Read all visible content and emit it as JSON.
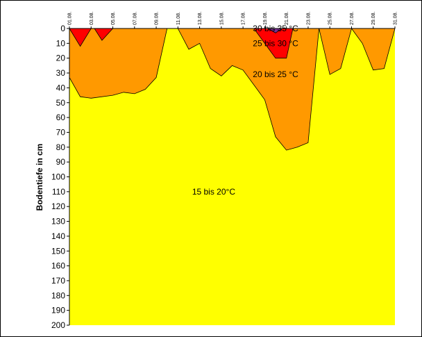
{
  "chart_data": {
    "type": "area",
    "title": "",
    "ylabel": "Bodentiefe in cm",
    "xlabel": "",
    "ylim": [
      0,
      200
    ],
    "y_inverted": true,
    "y_ticks": [
      0,
      10,
      20,
      30,
      40,
      50,
      60,
      70,
      80,
      90,
      100,
      110,
      120,
      130,
      140,
      150,
      160,
      170,
      180,
      190,
      200
    ],
    "x_ticks": [
      "01.08.",
      "03.08.",
      "05.08.",
      "07.08.",
      "09.08.",
      "11.08.",
      "13.08.",
      "15.08.",
      "17.08.",
      "19.08.",
      "21.08.",
      "23.08.",
      "25.08.",
      "27.08.",
      "29.08.",
      "31.08."
    ],
    "x_day_range": [
      1,
      31
    ],
    "grid": false,
    "legend": "none",
    "regions": [
      {
        "name": "15 bis 20°C",
        "color": "#ffff00",
        "label_day": 14.3,
        "label_depth": 110,
        "points": []
      },
      {
        "name": "20 bis 25 °C",
        "color": "#ff9900",
        "label_day": 20,
        "label_depth": 31,
        "points": [
          [
            1,
            0
          ],
          [
            1,
            33
          ],
          [
            2,
            46
          ],
          [
            3,
            47
          ],
          [
            5,
            45
          ],
          [
            6,
            43
          ],
          [
            7,
            44
          ],
          [
            8,
            41
          ],
          [
            9,
            33
          ],
          [
            10,
            0
          ],
          [
            11,
            0
          ],
          [
            12,
            14
          ],
          [
            13,
            10
          ],
          [
            14,
            27
          ],
          [
            15,
            32
          ],
          [
            16,
            25
          ],
          [
            17,
            28
          ],
          [
            18,
            38
          ],
          [
            19,
            48
          ],
          [
            20,
            73
          ],
          [
            21,
            82
          ],
          [
            22,
            80
          ],
          [
            23,
            77
          ],
          [
            24,
            0
          ],
          [
            25,
            31
          ],
          [
            26,
            27
          ],
          [
            27,
            0
          ],
          [
            28,
            10
          ],
          [
            29,
            28
          ],
          [
            30,
            27
          ],
          [
            31,
            0
          ]
        ]
      },
      {
        "name": "25 bis 30 °C",
        "color": "#ff0000",
        "label_day": 20,
        "label_depth": 10,
        "segments": [
          [
            [
              1,
              0
            ],
            [
              2,
              12
            ],
            [
              3,
              0
            ]
          ],
          [
            [
              3.3,
              0
            ],
            [
              4,
              8
            ],
            [
              5,
              0
            ]
          ],
          [
            [
              18,
              0
            ],
            [
              20,
              20
            ],
            [
              21,
              20
            ],
            [
              21.6,
              0
            ]
          ]
        ]
      },
      {
        "name": "30 bis 35 °C",
        "color": "#7a2d91",
        "label_day": 20,
        "label_depth": 0,
        "segments": [
          [
            [
              19.3,
              0
            ],
            [
              20,
              3
            ],
            [
              20.6,
              0
            ]
          ]
        ]
      }
    ]
  }
}
